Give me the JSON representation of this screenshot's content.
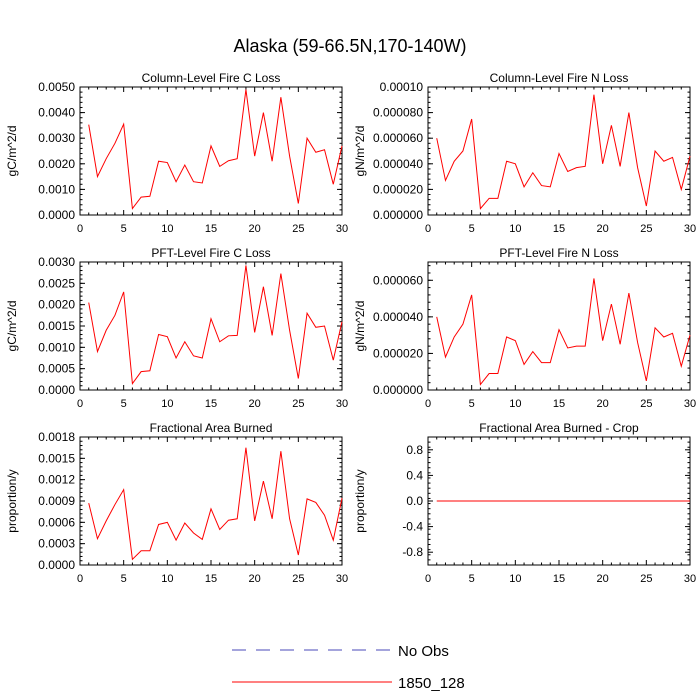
{
  "figure": {
    "title": "Alaska (59-66.5N,170-140W)",
    "line_color": "#ff0000",
    "obs_color": "#4a4ab8"
  },
  "legend": {
    "entries": [
      {
        "label": "No Obs",
        "style": "dashed",
        "color": "#4a4ab8"
      },
      {
        "label": "1850_128",
        "style": "solid",
        "color": "#ff0000"
      }
    ]
  },
  "chart_data": [
    {
      "type": "line",
      "title": "Column-Level Fire C Loss",
      "ylabel": "gC/m^2/d",
      "xlim": [
        0,
        30
      ],
      "ylim": [
        0,
        0.005
      ],
      "xticks": [
        "0",
        "5",
        "10",
        "15",
        "20",
        "25",
        "30"
      ],
      "yticks": [
        "0.0000",
        "0.0010",
        "0.0020",
        "0.0030",
        "0.0040",
        "0.0050"
      ],
      "series": [
        {
          "name": "1850_128",
          "x": [
            1,
            2,
            3,
            4,
            5,
            6,
            7,
            8,
            9,
            10,
            11,
            12,
            13,
            14,
            15,
            16,
            17,
            18,
            19,
            20,
            21,
            22,
            23,
            24,
            25,
            26,
            27,
            28,
            29,
            30
          ],
          "values": [
            0.00353,
            0.0015,
            0.0022,
            0.0028,
            0.00355,
            0.00025,
            0.0007,
            0.00073,
            0.0021,
            0.00205,
            0.0013,
            0.00195,
            0.0013,
            0.00125,
            0.0027,
            0.0019,
            0.00212,
            0.0022,
            0.0049,
            0.0023,
            0.004,
            0.0021,
            0.0046,
            0.0023,
            0.00045,
            0.003,
            0.00245,
            0.00255,
            0.0012,
            0.0027
          ]
        }
      ]
    },
    {
      "type": "line",
      "title": "Column-Level Fire N Loss",
      "ylabel": "gN/m^2/d",
      "xlim": [
        0,
        30
      ],
      "ylim": [
        0,
        0.0001
      ],
      "xticks": [
        "0",
        "5",
        "10",
        "15",
        "20",
        "25",
        "30"
      ],
      "yticks": [
        "0.000000",
        "0.000020",
        "0.000040",
        "0.000060",
        "0.000080",
        "0.00010"
      ],
      "series": [
        {
          "name": "1850_128",
          "x": [
            1,
            2,
            3,
            4,
            5,
            6,
            7,
            8,
            9,
            10,
            11,
            12,
            13,
            14,
            15,
            16,
            17,
            18,
            19,
            20,
            21,
            22,
            23,
            24,
            25,
            26,
            27,
            28,
            29,
            30
          ],
          "values": [
            6e-05,
            2.7e-05,
            4.2e-05,
            5e-05,
            7.5e-05,
            5e-06,
            1.3e-05,
            1.3e-05,
            4.2e-05,
            4e-05,
            2.2e-05,
            3.3e-05,
            2.3e-05,
            2.2e-05,
            4.8e-05,
            3.4e-05,
            3.7e-05,
            3.8e-05,
            9.4e-05,
            4e-05,
            7e-05,
            3.8e-05,
            8e-05,
            3.7e-05,
            7e-06,
            5e-05,
            4.2e-05,
            4.5e-05,
            2e-05,
            4.6e-05
          ]
        }
      ]
    },
    {
      "type": "line",
      "title": "PFT-Level Fire C Loss",
      "ylabel": "gC/m^2/d",
      "xlim": [
        0,
        30
      ],
      "ylim": [
        0,
        0.003
      ],
      "xticks": [
        "0",
        "5",
        "10",
        "15",
        "20",
        "25",
        "30"
      ],
      "yticks": [
        "0.0000",
        "0.0005",
        "0.0010",
        "0.0015",
        "0.0020",
        "0.0025",
        "0.0030"
      ],
      "series": [
        {
          "name": "1850_128",
          "x": [
            1,
            2,
            3,
            4,
            5,
            6,
            7,
            8,
            9,
            10,
            11,
            12,
            13,
            14,
            15,
            16,
            17,
            18,
            19,
            20,
            21,
            22,
            23,
            24,
            25,
            26,
            27,
            28,
            29,
            30
          ],
          "values": [
            0.00205,
            0.0009,
            0.0014,
            0.00175,
            0.0023,
            0.00015,
            0.00043,
            0.00045,
            0.0013,
            0.00125,
            0.00075,
            0.00113,
            0.0008,
            0.00075,
            0.00167,
            0.00113,
            0.00127,
            0.00128,
            0.00292,
            0.00135,
            0.00242,
            0.00128,
            0.00273,
            0.0014,
            0.00027,
            0.0018,
            0.00147,
            0.0015,
            0.0007,
            0.0016
          ]
        }
      ]
    },
    {
      "type": "line",
      "title": "PFT-Level Fire N Loss",
      "ylabel": "gN/m^2/d",
      "xlim": [
        0,
        30
      ],
      "ylim": [
        0,
        7e-05
      ],
      "xticks": [
        "0",
        "5",
        "10",
        "15",
        "20",
        "25",
        "30"
      ],
      "yticks": [
        "0.000000",
        "0.000020",
        "0.000040",
        "0.000060"
      ],
      "series": [
        {
          "name": "1850_128",
          "x": [
            1,
            2,
            3,
            4,
            5,
            6,
            7,
            8,
            9,
            10,
            11,
            12,
            13,
            14,
            15,
            16,
            17,
            18,
            19,
            20,
            21,
            22,
            23,
            24,
            25,
            26,
            27,
            28,
            29,
            30
          ],
          "values": [
            4e-05,
            1.8e-05,
            2.9e-05,
            3.6e-05,
            5.2e-05,
            3e-06,
            9e-06,
            9e-06,
            2.9e-05,
            2.7e-05,
            1.4e-05,
            2.1e-05,
            1.5e-05,
            1.5e-05,
            3.3e-05,
            2.3e-05,
            2.4e-05,
            2.4e-05,
            6.1e-05,
            2.7e-05,
            4.7e-05,
            2.5e-05,
            5.3e-05,
            2.6e-05,
            5e-06,
            3.4e-05,
            2.9e-05,
            3.1e-05,
            1.3e-05,
            3e-05
          ]
        }
      ]
    },
    {
      "type": "line",
      "title": "Fractional Area Burned",
      "ylabel": "proportion/y",
      "xlim": [
        0,
        30
      ],
      "ylim": [
        0,
        0.0018
      ],
      "xticks": [
        "0",
        "5",
        "10",
        "15",
        "20",
        "25",
        "30"
      ],
      "yticks": [
        "0.0000",
        "0.0003",
        "0.0006",
        "0.0009",
        "0.0012",
        "0.0015",
        "0.0018"
      ],
      "series": [
        {
          "name": "1850_128",
          "x": [
            1,
            2,
            3,
            4,
            5,
            6,
            7,
            8,
            9,
            10,
            11,
            12,
            13,
            14,
            15,
            16,
            17,
            18,
            19,
            20,
            21,
            22,
            23,
            24,
            25,
            26,
            27,
            28,
            29,
            30
          ],
          "values": [
            0.00087,
            0.00037,
            0.00062,
            0.00085,
            0.00106,
            8e-05,
            0.0002,
            0.0002,
            0.00057,
            0.0006,
            0.00035,
            0.00059,
            0.00045,
            0.00036,
            0.00079,
            0.0005,
            0.00063,
            0.00065,
            0.00165,
            0.00062,
            0.00118,
            0.00065,
            0.0016,
            0.00065,
            0.00014,
            0.00093,
            0.00088,
            0.0007,
            0.00035,
            0.00094
          ]
        }
      ]
    },
    {
      "type": "line",
      "title": "Fractional Area Burned - Crop",
      "ylabel": "proportion/y",
      "xlim": [
        0,
        30
      ],
      "ylim": [
        -1,
        1
      ],
      "xticks": [
        "0",
        "5",
        "10",
        "15",
        "20",
        "25",
        "30"
      ],
      "yticks": [
        "-0.8",
        "-0.4",
        "0.0",
        "0.4",
        "0.8"
      ],
      "series": [
        {
          "name": "1850_128",
          "x": [
            1,
            2,
            3,
            4,
            5,
            6,
            7,
            8,
            9,
            10,
            11,
            12,
            13,
            14,
            15,
            16,
            17,
            18,
            19,
            20,
            21,
            22,
            23,
            24,
            25,
            26,
            27,
            28,
            29,
            30
          ],
          "values": [
            0,
            0,
            0,
            0,
            0,
            0,
            0,
            0,
            0,
            0,
            0,
            0,
            0,
            0,
            0,
            0,
            0,
            0,
            0,
            0,
            0,
            0,
            0,
            0,
            0,
            0,
            0,
            0,
            0,
            0
          ]
        }
      ]
    }
  ]
}
